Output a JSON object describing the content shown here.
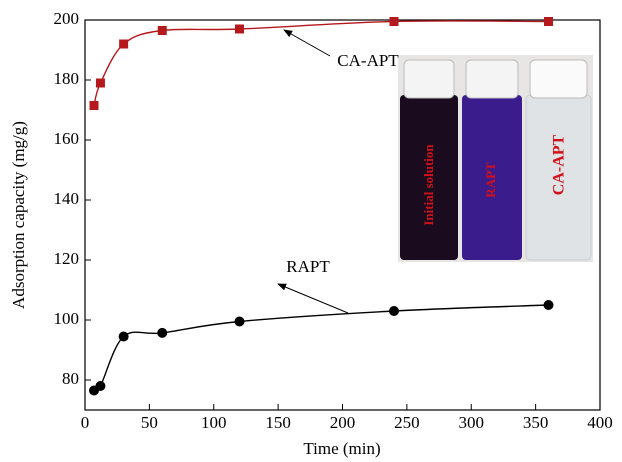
{
  "chart_data": {
    "type": "line",
    "x_label": "Time (min)",
    "y_label": "Adsorption capacity (mg/g)",
    "x": [
      7,
      12,
      30,
      60,
      120,
      240,
      360
    ],
    "series": [
      {
        "name": "CA-APT",
        "color": "#b5191e",
        "marker": "square",
        "values": [
          171.5,
          179,
          192,
          196.5,
          197,
          199.5,
          199.5
        ]
      },
      {
        "name": "RAPT",
        "color": "#000000",
        "marker": "circle",
        "values": [
          76.5,
          78,
          94.5,
          95.7,
          99.5,
          103,
          105
        ]
      }
    ],
    "xlim": [
      0,
      400
    ],
    "xticks": [
      0,
      50,
      100,
      150,
      200,
      250,
      300,
      350,
      400
    ],
    "ylim": [
      70,
      200
    ],
    "yticks": [
      80,
      100,
      120,
      140,
      160,
      180,
      200
    ],
    "inset_labels": [
      "Initial solution",
      "RAPT",
      "CA-APT"
    ]
  }
}
